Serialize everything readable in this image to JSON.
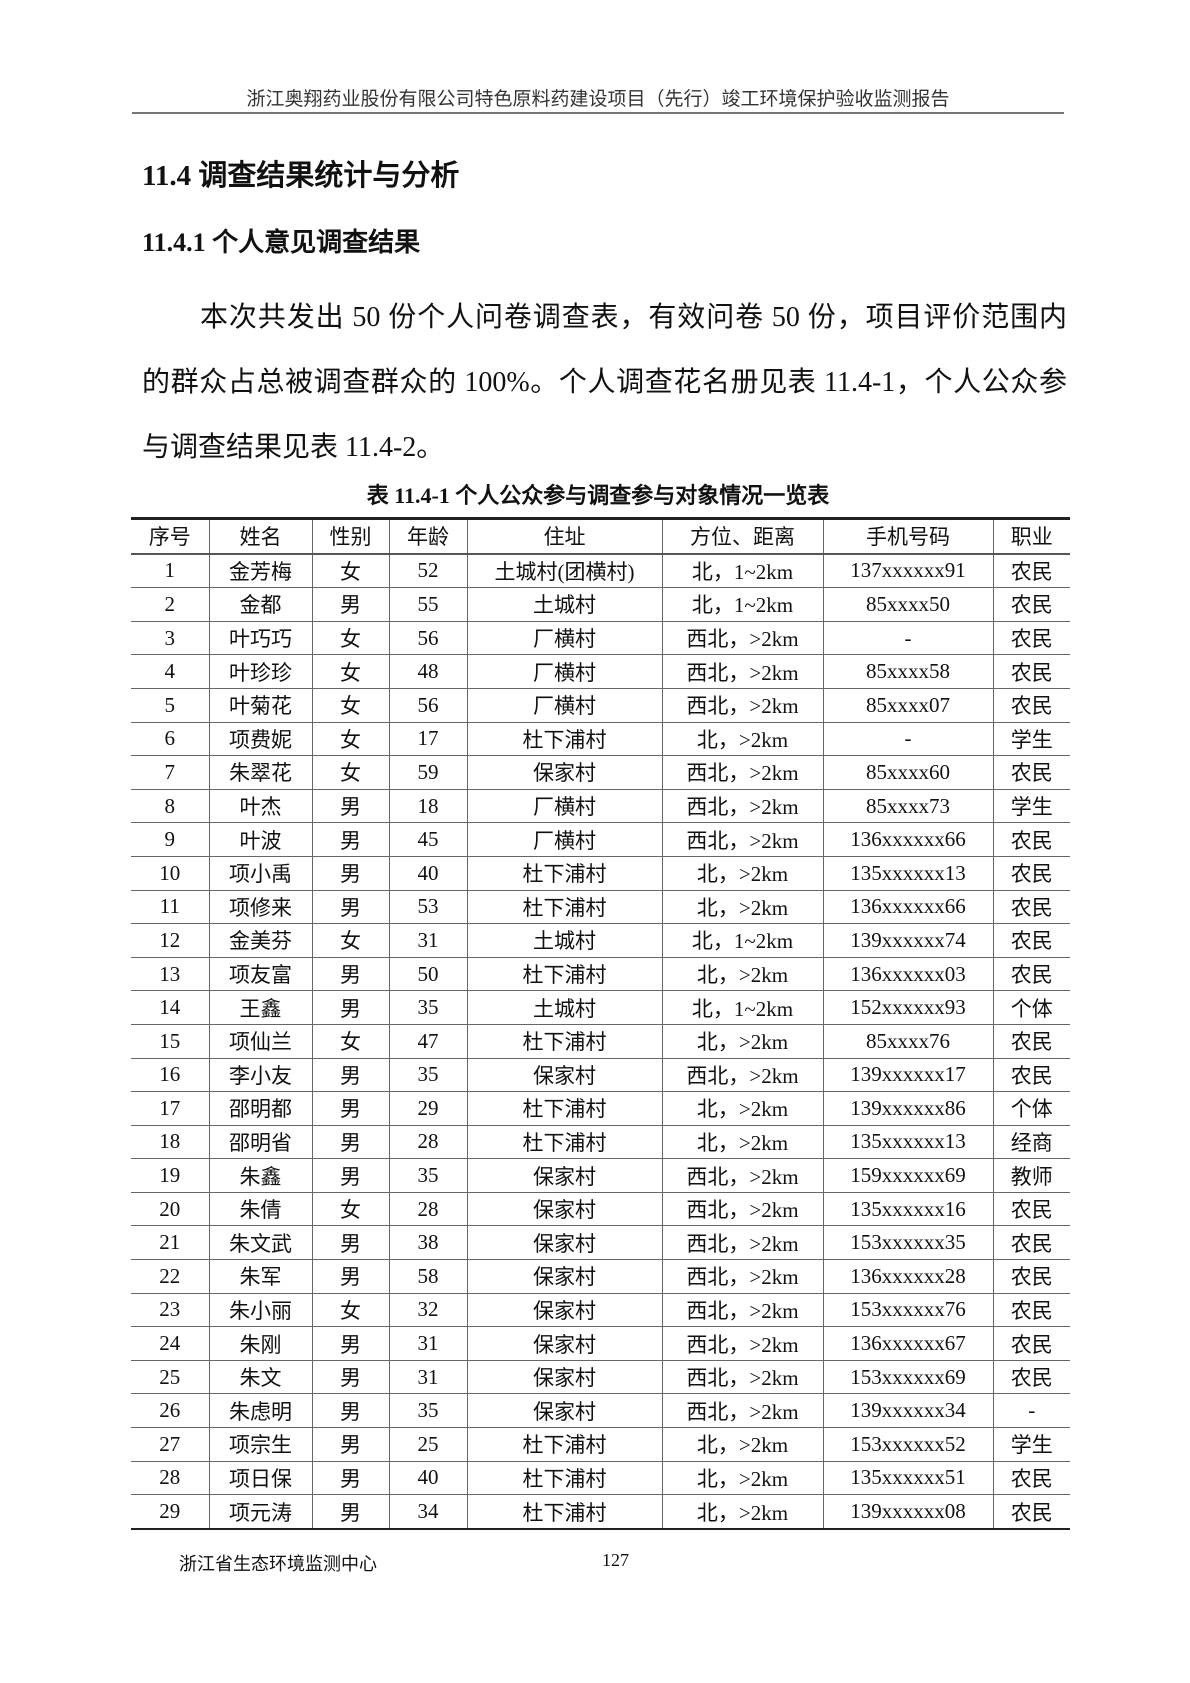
{
  "header": {
    "title": "浙江奥翔药业股份有限公司特色原料药建设项目（先行）竣工环境保护验收监测报告"
  },
  "section": {
    "title": "11.4  调查结果统计与分析",
    "subtitle": "11.4.1 个人意见调查结果"
  },
  "paragraph": "本次共发出 50 份个人问卷调查表，有效问卷 50 份，项目评价范围内的群众占总被调查群众的 100%。个人调查花名册见表 11.4-1，个人公众参与调查结果见表 11.4-2。",
  "table": {
    "caption": "表 11.4-1  个人公众参与调查参与对象情况一览表",
    "columns": [
      "序号",
      "姓名",
      "性别",
      "年龄",
      "住址",
      "方位、距离",
      "手机号码",
      "职业"
    ],
    "rows": [
      [
        "1",
        "金芳梅",
        "女",
        "52",
        "土城村(团横村)",
        "北，1~2km",
        "137xxxxxx91",
        "农民"
      ],
      [
        "2",
        "金都",
        "男",
        "55",
        "土城村",
        "北，1~2km",
        "85xxxx50",
        "农民"
      ],
      [
        "3",
        "叶巧巧",
        "女",
        "56",
        "厂横村",
        "西北，>2km",
        "-",
        "农民"
      ],
      [
        "4",
        "叶珍珍",
        "女",
        "48",
        "厂横村",
        "西北，>2km",
        "85xxxx58",
        "农民"
      ],
      [
        "5",
        "叶菊花",
        "女",
        "56",
        "厂横村",
        "西北，>2km",
        "85xxxx07",
        "农民"
      ],
      [
        "6",
        "项费妮",
        "女",
        "17",
        "杜下浦村",
        "北，>2km",
        "-",
        "学生"
      ],
      [
        "7",
        "朱翠花",
        "女",
        "59",
        "保家村",
        "西北，>2km",
        "85xxxx60",
        "农民"
      ],
      [
        "8",
        "叶杰",
        "男",
        "18",
        "厂横村",
        "西北，>2km",
        "85xxxx73",
        "学生"
      ],
      [
        "9",
        "叶波",
        "男",
        "45",
        "厂横村",
        "西北，>2km",
        "136xxxxxx66",
        "农民"
      ],
      [
        "10",
        "项小禹",
        "男",
        "40",
        "杜下浦村",
        "北，>2km",
        "135xxxxxx13",
        "农民"
      ],
      [
        "11",
        "项修来",
        "男",
        "53",
        "杜下浦村",
        "北，>2km",
        "136xxxxxx66",
        "农民"
      ],
      [
        "12",
        "金美芬",
        "女",
        "31",
        "土城村",
        "北，1~2km",
        "139xxxxxx74",
        "农民"
      ],
      [
        "13",
        "项友富",
        "男",
        "50",
        "杜下浦村",
        "北，>2km",
        "136xxxxxx03",
        "农民"
      ],
      [
        "14",
        "王鑫",
        "男",
        "35",
        "土城村",
        "北，1~2km",
        "152xxxxxx93",
        "个体"
      ],
      [
        "15",
        "项仙兰",
        "女",
        "47",
        "杜下浦村",
        "北，>2km",
        "85xxxx76",
        "农民"
      ],
      [
        "16",
        "李小友",
        "男",
        "35",
        "保家村",
        "西北，>2km",
        "139xxxxxx17",
        "农民"
      ],
      [
        "17",
        "邵明都",
        "男",
        "29",
        "杜下浦村",
        "北，>2km",
        "139xxxxxx86",
        "个体"
      ],
      [
        "18",
        "邵明省",
        "男",
        "28",
        "杜下浦村",
        "北，>2km",
        "135xxxxxx13",
        "经商"
      ],
      [
        "19",
        "朱鑫",
        "男",
        "35",
        "保家村",
        "西北，>2km",
        "159xxxxxx69",
        "教师"
      ],
      [
        "20",
        "朱倩",
        "女",
        "28",
        "保家村",
        "西北，>2km",
        "135xxxxxx16",
        "农民"
      ],
      [
        "21",
        "朱文武",
        "男",
        "38",
        "保家村",
        "西北，>2km",
        "153xxxxxx35",
        "农民"
      ],
      [
        "22",
        "朱军",
        "男",
        "58",
        "保家村",
        "西北，>2km",
        "136xxxxxx28",
        "农民"
      ],
      [
        "23",
        "朱小丽",
        "女",
        "32",
        "保家村",
        "西北，>2km",
        "153xxxxxx76",
        "农民"
      ],
      [
        "24",
        "朱刚",
        "男",
        "31",
        "保家村",
        "西北，>2km",
        "136xxxxxx67",
        "农民"
      ],
      [
        "25",
        "朱文",
        "男",
        "31",
        "保家村",
        "西北，>2km",
        "153xxxxxx69",
        "农民"
      ],
      [
        "26",
        "朱虑明",
        "男",
        "35",
        "保家村",
        "西北，>2km",
        "139xxxxxx34",
        "-"
      ],
      [
        "27",
        "项宗生",
        "男",
        "25",
        "杜下浦村",
        "北，>2km",
        "153xxxxxx52",
        "学生"
      ],
      [
        "28",
        "项日保",
        "男",
        "40",
        "杜下浦村",
        "北，>2km",
        "135xxxxxx51",
        "农民"
      ],
      [
        "29",
        "项元涛",
        "男",
        "34",
        "杜下浦村",
        "北，>2km",
        "139xxxxxx08",
        "农民"
      ]
    ]
  },
  "footer": {
    "org": "浙江省生态环境监测中心",
    "page": "127"
  }
}
